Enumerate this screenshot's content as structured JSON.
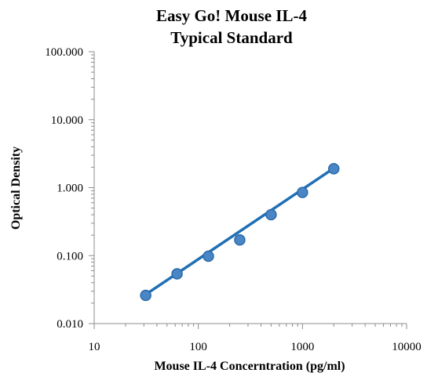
{
  "chart_data": {
    "type": "scatter",
    "title_lines": [
      "Easy Go! Mouse IL-4",
      "Typical Standard"
    ],
    "xlabel": "Mouse IL-4 Concerntration (pg/ml)",
    "ylabel": "Optical Density",
    "x_scale": "log",
    "y_scale": "log",
    "xlim": [
      10,
      10000
    ],
    "ylim": [
      0.01,
      100
    ],
    "x_ticks": [
      10,
      100,
      1000,
      10000
    ],
    "x_tick_labels": [
      "10",
      "100",
      "1000",
      "10000"
    ],
    "y_ticks": [
      0.01,
      0.1,
      1,
      10,
      100
    ],
    "y_tick_labels": [
      "0.010",
      "0.100",
      "1.000",
      "10.000",
      "100.000"
    ],
    "grid": false,
    "legend": "none",
    "series": [
      {
        "points": [
          {
            "x": 31.25,
            "y": 0.026
          },
          {
            "x": 62.5,
            "y": 0.054
          },
          {
            "x": 125,
            "y": 0.098
          },
          {
            "x": 250,
            "y": 0.17
          },
          {
            "x": 500,
            "y": 0.4
          },
          {
            "x": 1000,
            "y": 0.85
          },
          {
            "x": 2000,
            "y": 1.9
          }
        ],
        "color": "#2e75b6",
        "marker_color": "#4a86c5",
        "marker_edge": "#2a6aa8"
      }
    ],
    "fit_line": {
      "x": [
        31.25,
        2000
      ],
      "y": [
        0.0268,
        1.93
      ],
      "color": "#1f6fb5"
    }
  }
}
